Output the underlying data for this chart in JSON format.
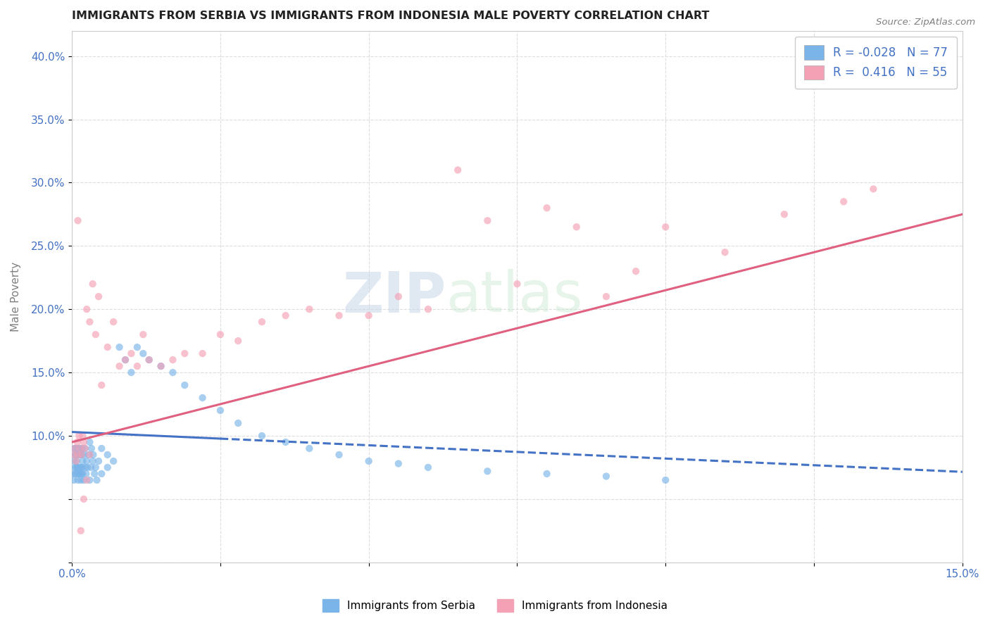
{
  "title": "IMMIGRANTS FROM SERBIA VS IMMIGRANTS FROM INDONESIA MALE POVERTY CORRELATION CHART",
  "source": "Source: ZipAtlas.com",
  "ylabel": "Male Poverty",
  "xlim": [
    0.0,
    0.15
  ],
  "ylim": [
    0.0,
    0.42
  ],
  "xticks": [
    0.0,
    0.025,
    0.05,
    0.075,
    0.1,
    0.125,
    0.15
  ],
  "xticklabels": [
    "0.0%",
    "",
    "",
    "",
    "",
    "",
    "15.0%"
  ],
  "yticks": [
    0.0,
    0.05,
    0.1,
    0.15,
    0.2,
    0.25,
    0.3,
    0.35,
    0.4
  ],
  "yticklabels": [
    "",
    "",
    "10.0%",
    "15.0%",
    "20.0%",
    "25.0%",
    "30.0%",
    "35.0%",
    "40.0%"
  ],
  "serbia_color": "#7ab4e8",
  "indonesia_color": "#f4a0b5",
  "serbia_R": -0.028,
  "serbia_N": 77,
  "indonesia_R": 0.416,
  "indonesia_N": 55,
  "serbia_scatter_x": [
    0.0002,
    0.0003,
    0.0004,
    0.0004,
    0.0005,
    0.0005,
    0.0006,
    0.0006,
    0.0007,
    0.0007,
    0.0008,
    0.0008,
    0.0009,
    0.0009,
    0.001,
    0.001,
    0.001,
    0.0012,
    0.0012,
    0.0013,
    0.0013,
    0.0014,
    0.0014,
    0.0015,
    0.0015,
    0.0016,
    0.0016,
    0.0017,
    0.0017,
    0.0018,
    0.0018,
    0.002,
    0.002,
    0.0022,
    0.0022,
    0.0024,
    0.0025,
    0.0026,
    0.0028,
    0.003,
    0.003,
    0.0032,
    0.0033,
    0.0035,
    0.0036,
    0.0038,
    0.004,
    0.0042,
    0.0045,
    0.005,
    0.005,
    0.006,
    0.006,
    0.007,
    0.008,
    0.009,
    0.01,
    0.011,
    0.012,
    0.013,
    0.015,
    0.017,
    0.019,
    0.022,
    0.025,
    0.028,
    0.032,
    0.036,
    0.04,
    0.045,
    0.05,
    0.055,
    0.06,
    0.07,
    0.08,
    0.09,
    0.1
  ],
  "serbia_scatter_y": [
    0.07,
    0.065,
    0.08,
    0.09,
    0.075,
    0.085,
    0.07,
    0.09,
    0.075,
    0.085,
    0.07,
    0.08,
    0.075,
    0.09,
    0.065,
    0.075,
    0.085,
    0.07,
    0.09,
    0.075,
    0.085,
    0.07,
    0.09,
    0.065,
    0.075,
    0.07,
    0.085,
    0.075,
    0.09,
    0.07,
    0.08,
    0.065,
    0.085,
    0.075,
    0.09,
    0.07,
    0.08,
    0.075,
    0.085,
    0.065,
    0.095,
    0.075,
    0.09,
    0.08,
    0.085,
    0.07,
    0.075,
    0.065,
    0.08,
    0.07,
    0.09,
    0.075,
    0.085,
    0.08,
    0.17,
    0.16,
    0.15,
    0.17,
    0.165,
    0.16,
    0.155,
    0.15,
    0.14,
    0.13,
    0.12,
    0.11,
    0.1,
    0.095,
    0.09,
    0.085,
    0.08,
    0.078,
    0.075,
    0.072,
    0.07,
    0.068,
    0.065
  ],
  "indonesia_scatter_x": [
    0.0003,
    0.0005,
    0.0007,
    0.0009,
    0.001,
    0.0012,
    0.0014,
    0.0016,
    0.0018,
    0.002,
    0.0022,
    0.0025,
    0.003,
    0.0035,
    0.004,
    0.0045,
    0.005,
    0.006,
    0.007,
    0.008,
    0.009,
    0.01,
    0.011,
    0.012,
    0.013,
    0.015,
    0.017,
    0.019,
    0.022,
    0.025,
    0.028,
    0.032,
    0.036,
    0.04,
    0.045,
    0.05,
    0.055,
    0.06,
    0.065,
    0.07,
    0.075,
    0.08,
    0.085,
    0.09,
    0.095,
    0.1,
    0.11,
    0.12,
    0.13,
    0.135,
    0.001,
    0.0015,
    0.002,
    0.0025,
    0.003
  ],
  "indonesia_scatter_y": [
    0.085,
    0.09,
    0.08,
    0.095,
    0.085,
    0.1,
    0.09,
    0.085,
    0.1,
    0.095,
    0.09,
    0.2,
    0.19,
    0.22,
    0.18,
    0.21,
    0.14,
    0.17,
    0.19,
    0.155,
    0.16,
    0.165,
    0.155,
    0.18,
    0.16,
    0.155,
    0.16,
    0.165,
    0.165,
    0.18,
    0.175,
    0.19,
    0.195,
    0.2,
    0.195,
    0.195,
    0.21,
    0.2,
    0.31,
    0.27,
    0.22,
    0.28,
    0.265,
    0.21,
    0.23,
    0.265,
    0.245,
    0.275,
    0.285,
    0.295,
    0.27,
    0.025,
    0.05,
    0.065,
    0.085
  ],
  "watermark_zip": "ZIP",
  "watermark_atlas": "atlas",
  "background_color": "#ffffff",
  "grid_color": "#dddddd",
  "serbia_line_solid_end": 0.025,
  "indonesia_line_color": "#e06080",
  "serbia_line_color": "#4472c4",
  "serbia_line_intercept": 0.103,
  "serbia_line_slope": -0.21,
  "indonesia_line_intercept": 0.095,
  "indonesia_line_slope": 1.2
}
